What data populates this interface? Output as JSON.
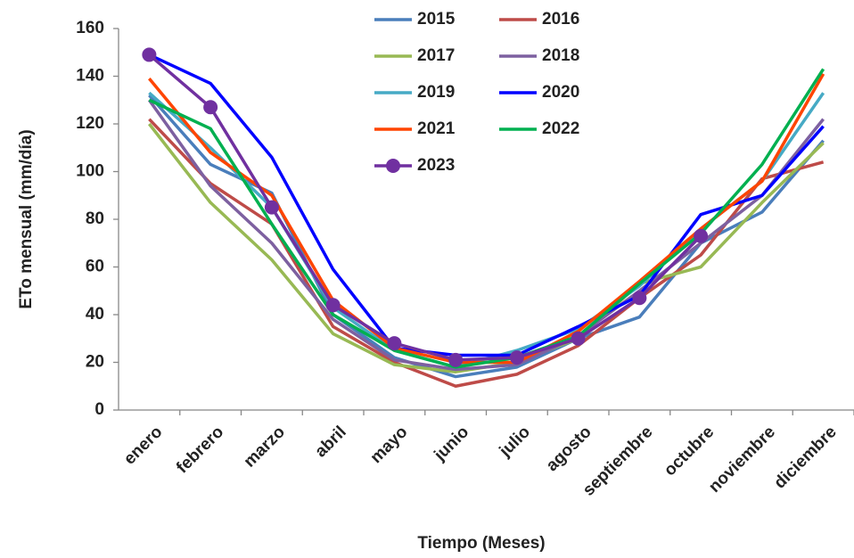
{
  "chart_data": {
    "type": "line",
    "y_label": "ETo mensual (mm/día)",
    "x_label": "Tiempo (Meses)",
    "categories": [
      "enero",
      "febrero",
      "marzo",
      "abril",
      "mayo",
      "junio",
      "julio",
      "agosto",
      "septiembre",
      "octubre",
      "noviembre",
      "diciembre"
    ],
    "series": [
      {
        "name": "2015",
        "color": "#4a7ebb",
        "values": [
          132,
          103,
          91,
          40,
          22,
          14,
          18,
          30,
          39,
          70,
          83,
          113
        ]
      },
      {
        "name": "2016",
        "color": "#be4b48",
        "values": [
          122,
          95,
          78,
          35,
          20,
          10,
          15,
          27,
          47,
          65,
          97,
          104
        ]
      },
      {
        "name": "2017",
        "color": "#98b954",
        "values": [
          120,
          87,
          63,
          32,
          19,
          16,
          20,
          30,
          53,
          60,
          87,
          112
        ]
      },
      {
        "name": "2018",
        "color": "#7d60a0",
        "values": [
          130,
          94,
          70,
          38,
          21,
          17,
          19,
          31,
          50,
          70,
          90,
          122
        ]
      },
      {
        "name": "2019",
        "color": "#46aac5",
        "values": [
          133,
          110,
          85,
          43,
          25,
          18,
          25,
          34,
          52,
          76,
          96,
          133
        ]
      },
      {
        "name": "2020",
        "color": "#0000ff",
        "values": [
          149,
          137,
          106,
          59,
          26,
          23,
          23,
          35,
          48,
          82,
          90,
          119
        ]
      },
      {
        "name": "2021",
        "color": "#ff4500",
        "values": [
          139,
          108,
          90,
          46,
          26,
          20,
          20,
          33,
          54,
          76,
          96,
          141
        ]
      },
      {
        "name": "2022",
        "color": "#00b050",
        "values": [
          130,
          118,
          78,
          40,
          25,
          18,
          22,
          31,
          53,
          74,
          103,
          143
        ]
      },
      {
        "name": "2023",
        "color": "#7030a0",
        "marker": "circle",
        "values": [
          149,
          127,
          85,
          44,
          28,
          21,
          22,
          30,
          47,
          73,
          null,
          null
        ]
      }
    ],
    "ylim": [
      0,
      160
    ],
    "yticks": [
      0,
      20,
      40,
      60,
      80,
      100,
      120,
      140,
      160
    ],
    "grid": false,
    "legend": "top"
  }
}
